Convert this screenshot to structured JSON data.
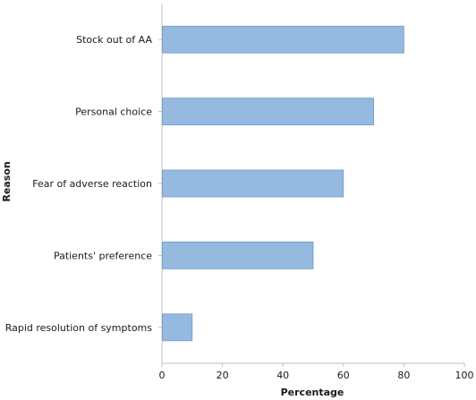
{
  "chart_data": {
    "type": "bar",
    "orientation": "horizontal",
    "categories": [
      "Stock out of AA",
      "Personal choice",
      "Fear of adverse reaction",
      "Patients' preference",
      "Rapid resolution of symptoms"
    ],
    "values": [
      80,
      70,
      60,
      50,
      10
    ],
    "xlabel": "Percentage",
    "ylabel": "Reason",
    "xlim": [
      0,
      100
    ],
    "xticks": [
      "0",
      "20",
      "40",
      "60",
      "80",
      "100"
    ],
    "grid": false,
    "legend": "none",
    "colors": {
      "bar": "#95b9df",
      "bar_stroke": "#6f9ccd",
      "axis": "#bfbfbf"
    }
  }
}
